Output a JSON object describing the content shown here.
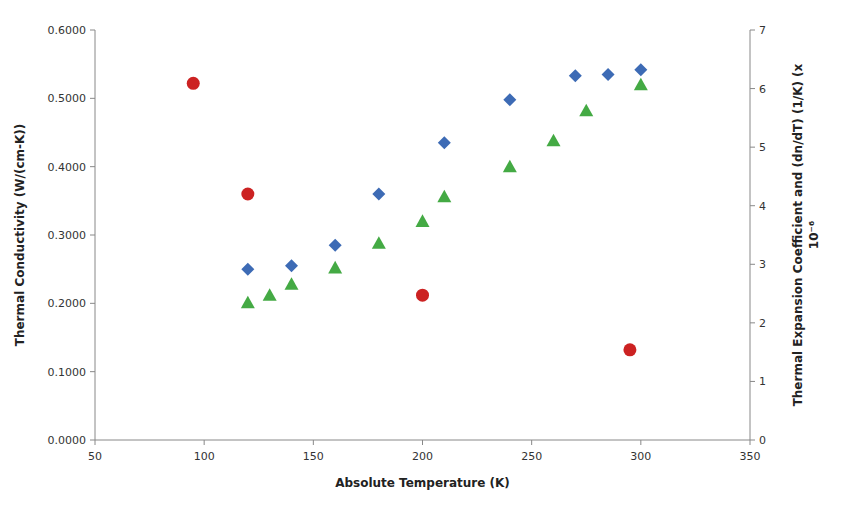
{
  "chart_data": {
    "type": "scatter",
    "xlabel": "Absolute Temperature (K)",
    "ylabel": "Thermal Conductivity (W/(cm-K))",
    "y2label": "Thermal Expansion Coefficient and (dn/dT) (1/K) (x\n10⁻⁶",
    "series": [
      {
        "color": "#3D6BB5",
        "marker": "diamond",
        "x": [
          120,
          140,
          160,
          180,
          210,
          240,
          270,
          285,
          300
        ],
        "values": [
          0.25,
          0.255,
          0.285,
          0.36,
          0.435,
          0.498,
          0.533,
          0.535,
          0.542
        ]
      },
      {
        "color": "#CC2222",
        "marker": "circle",
        "x": [
          95,
          120,
          200,
          295
        ],
        "values": [
          0.522,
          0.36,
          0.212,
          0.132
        ]
      },
      {
        "color": "#44AA44",
        "marker": "triangle",
        "x": [
          120,
          130,
          140,
          160,
          180,
          200,
          210,
          240,
          260,
          275,
          300
        ],
        "values": [
          0.201,
          0.212,
          0.228,
          0.252,
          0.288,
          0.32,
          0.356,
          0.4,
          0.438,
          0.482,
          0.52
        ]
      }
    ],
    "xlim": [
      50,
      350
    ],
    "xticks": [
      50,
      100,
      150,
      200,
      250,
      300,
      350
    ],
    "ylim": [
      0.0,
      0.6
    ],
    "yticks": [
      {
        "value": 0.0,
        "label": "0.0000"
      },
      {
        "value": 0.1,
        "label": "0.1000"
      },
      {
        "value": 0.2,
        "label": "0.2000"
      },
      {
        "value": 0.3,
        "label": "0.3000"
      },
      {
        "value": 0.4,
        "label": "0.4000"
      },
      {
        "value": 0.5,
        "label": "0.5000"
      },
      {
        "value": 0.6,
        "label": "0.6000"
      }
    ],
    "y2lim": [
      0,
      7
    ],
    "y2ticks": [
      0,
      1,
      2,
      3,
      4,
      5,
      6,
      7
    ],
    "grid": false
  }
}
